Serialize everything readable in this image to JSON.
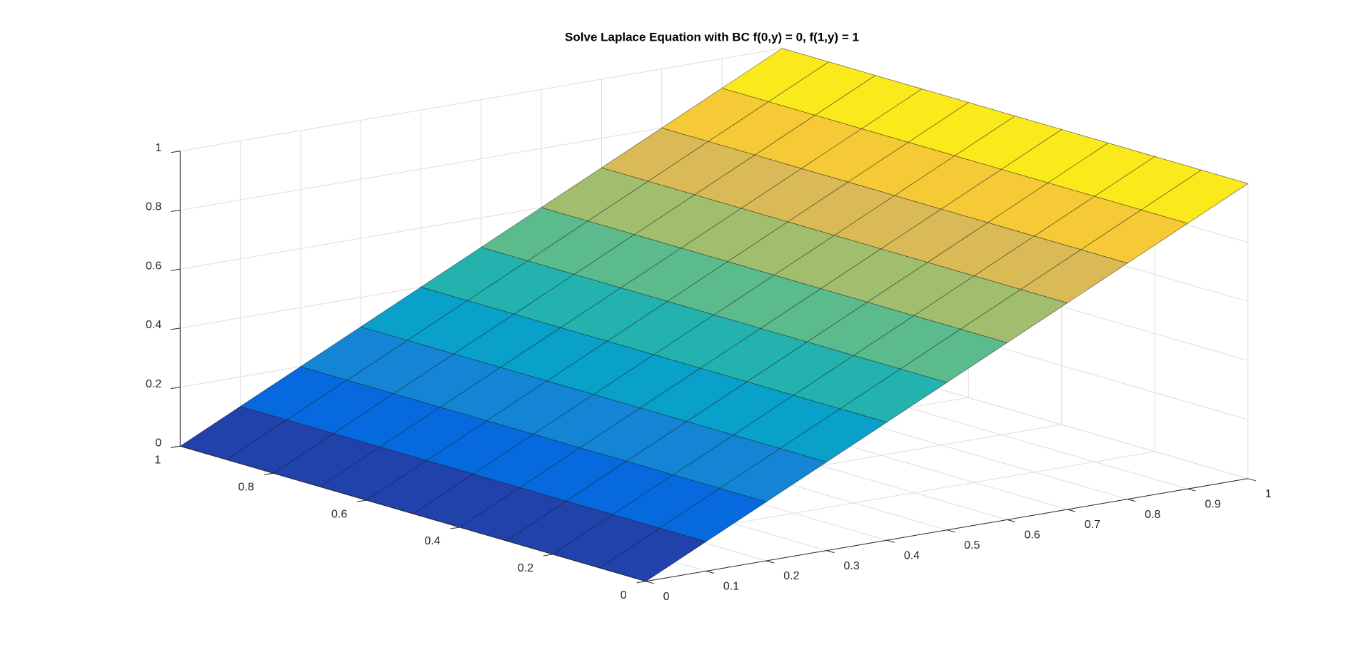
{
  "chart_data": {
    "type": "surface",
    "title": "Solve Laplace Equation with BC f(0,y) = 0, f(1,y) = 1",
    "x": [
      0,
      0.1,
      0.2,
      0.3,
      0.4,
      0.5,
      0.6,
      0.7,
      0.8,
      0.9,
      1
    ],
    "y": [
      0,
      0.1,
      0.2,
      0.3,
      0.4,
      0.5,
      0.6,
      0.7,
      0.8,
      0.9,
      1
    ],
    "z": [
      [
        0,
        0.1,
        0.2,
        0.3,
        0.4,
        0.5,
        0.6,
        0.7,
        0.8,
        0.9,
        1
      ],
      [
        0,
        0.1,
        0.2,
        0.3,
        0.4,
        0.5,
        0.6,
        0.7,
        0.8,
        0.9,
        1
      ],
      [
        0,
        0.1,
        0.2,
        0.3,
        0.4,
        0.5,
        0.6,
        0.7,
        0.8,
        0.9,
        1
      ],
      [
        0,
        0.1,
        0.2,
        0.3,
        0.4,
        0.5,
        0.6,
        0.7,
        0.8,
        0.9,
        1
      ],
      [
        0,
        0.1,
        0.2,
        0.3,
        0.4,
        0.5,
        0.6,
        0.7,
        0.8,
        0.9,
        1
      ],
      [
        0,
        0.1,
        0.2,
        0.3,
        0.4,
        0.5,
        0.6,
        0.7,
        0.8,
        0.9,
        1
      ],
      [
        0,
        0.1,
        0.2,
        0.3,
        0.4,
        0.5,
        0.6,
        0.7,
        0.8,
        0.9,
        1
      ],
      [
        0,
        0.1,
        0.2,
        0.3,
        0.4,
        0.5,
        0.6,
        0.7,
        0.8,
        0.9,
        1
      ],
      [
        0,
        0.1,
        0.2,
        0.3,
        0.4,
        0.5,
        0.6,
        0.7,
        0.8,
        0.9,
        1
      ],
      [
        0,
        0.1,
        0.2,
        0.3,
        0.4,
        0.5,
        0.6,
        0.7,
        0.8,
        0.9,
        1
      ],
      [
        0,
        0.1,
        0.2,
        0.3,
        0.4,
        0.5,
        0.6,
        0.7,
        0.8,
        0.9,
        1
      ]
    ],
    "xlim": [
      0,
      1
    ],
    "ylim": [
      0,
      1
    ],
    "zlim": [
      0,
      1
    ],
    "xticks": [
      0,
      0.1,
      0.2,
      0.3,
      0.4,
      0.5,
      0.6,
      0.7,
      0.8,
      0.9,
      1
    ],
    "yticks": [
      0,
      0.2,
      0.4,
      0.6,
      0.8,
      1
    ],
    "zticks": [
      0,
      0.2,
      0.4,
      0.6,
      0.8,
      1
    ],
    "grid": true,
    "colormap": [
      "#352a87",
      "#0363e1",
      "#1485d4",
      "#06a7c6",
      "#38b99e",
      "#92bf73",
      "#d9ba56",
      "#fcce2e",
      "#f9fb0e"
    ]
  }
}
